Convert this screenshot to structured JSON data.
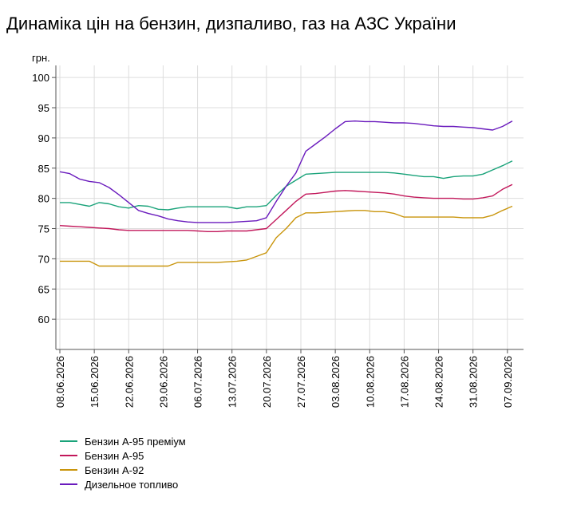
{
  "chart_data": {
    "type": "line",
    "title": "Динаміка цін на бензин, дизпаливо, газ на АЗС України",
    "ylabel": "грн.",
    "xlabel": "",
    "ylim": [
      55,
      102
    ],
    "yticks": [
      60,
      65,
      70,
      75,
      80,
      85,
      90,
      95,
      100
    ],
    "grid": true,
    "legend_position": "bottom-left",
    "x_ticks": [
      "08.06.2026",
      "15.06.2026",
      "22.06.2026",
      "29.06.2026",
      "06.07.2026",
      "13.07.2026",
      "20.07.2026",
      "27.07.2026",
      "03.08.2026",
      "10.08.2026",
      "17.08.2026",
      "24.08.2026",
      "31.08.2026",
      "07.09.2026"
    ],
    "x": [
      "08.06.2026",
      "10.06.2026",
      "12.06.2026",
      "14.06.2026",
      "16.06.2026",
      "18.06.2026",
      "20.06.2026",
      "22.06.2026",
      "24.06.2026",
      "26.06.2026",
      "28.06.2026",
      "30.06.2026",
      "02.07.2026",
      "04.07.2026",
      "06.07.2026",
      "08.07.2026",
      "10.07.2026",
      "12.07.2026",
      "14.07.2026",
      "16.07.2026",
      "18.07.2026",
      "20.07.2026",
      "22.07.2026",
      "24.07.2026",
      "26.07.2026",
      "28.07.2026",
      "30.07.2026",
      "01.08.2026",
      "03.08.2026",
      "05.08.2026",
      "07.08.2026",
      "09.08.2026",
      "11.08.2026",
      "13.08.2026",
      "15.08.2026",
      "17.08.2026",
      "19.08.2026",
      "21.08.2026",
      "23.08.2026",
      "25.08.2026",
      "27.08.2026",
      "29.08.2026",
      "31.08.2026",
      "02.09.2026",
      "04.09.2026",
      "06.09.2026",
      "08.09.2026"
    ],
    "series": [
      {
        "name": "Бензин А-95 преміум",
        "color": "#1aa37a",
        "values": [
          79.3,
          79.3,
          79.0,
          78.7,
          79.3,
          79.1,
          78.6,
          78.4,
          78.8,
          78.7,
          78.2,
          78.1,
          78.4,
          78.6,
          78.6,
          78.6,
          78.6,
          78.6,
          78.3,
          78.6,
          78.6,
          78.8,
          80.5,
          82.0,
          83.0,
          84.0,
          84.1,
          84.2,
          84.3,
          84.3,
          84.3,
          84.3,
          84.3,
          84.3,
          84.2,
          84.0,
          83.8,
          83.6,
          83.6,
          83.3,
          83.6,
          83.7,
          83.7,
          84.0,
          84.7,
          85.4,
          86.2
        ]
      },
      {
        "name": "Бензин А-95",
        "color": "#c2185b",
        "values": [
          75.5,
          75.4,
          75.3,
          75.2,
          75.1,
          75.0,
          74.8,
          74.7,
          74.7,
          74.7,
          74.7,
          74.7,
          74.7,
          74.7,
          74.6,
          74.5,
          74.5,
          74.6,
          74.6,
          74.6,
          74.8,
          75.0,
          76.5,
          78.0,
          79.5,
          80.7,
          80.8,
          81.0,
          81.2,
          81.3,
          81.2,
          81.1,
          81.0,
          80.9,
          80.7,
          80.4,
          80.2,
          80.1,
          80.0,
          80.0,
          80.0,
          79.9,
          79.9,
          80.1,
          80.4,
          81.5,
          82.3
        ]
      },
      {
        "name": "Бензин А-92",
        "color": "#c9950c",
        "values": [
          69.6,
          69.6,
          69.6,
          69.6,
          68.8,
          68.8,
          68.8,
          68.8,
          68.8,
          68.8,
          68.8,
          68.8,
          69.4,
          69.4,
          69.4,
          69.4,
          69.4,
          69.5,
          69.6,
          69.8,
          70.4,
          71.0,
          73.5,
          75.0,
          76.8,
          77.6,
          77.6,
          77.7,
          77.8,
          77.9,
          78.0,
          78.0,
          77.8,
          77.8,
          77.5,
          76.9,
          76.9,
          76.9,
          76.9,
          76.9,
          76.9,
          76.8,
          76.8,
          76.8,
          77.2,
          78.0,
          78.7
        ]
      },
      {
        "name": "Дизельное топливо",
        "color": "#6a1bbd",
        "values": [
          84.4,
          84.1,
          83.2,
          82.8,
          82.6,
          81.8,
          80.6,
          79.3,
          78.0,
          77.5,
          77.1,
          76.6,
          76.3,
          76.1,
          76.0,
          76.0,
          76.0,
          76.0,
          76.1,
          76.2,
          76.3,
          76.8,
          79.5,
          82.0,
          84.2,
          87.8,
          89.0,
          90.2,
          91.5,
          92.7,
          92.8,
          92.7,
          92.7,
          92.6,
          92.5,
          92.5,
          92.4,
          92.2,
          92.0,
          91.9,
          91.9,
          91.8,
          91.7,
          91.5,
          91.3,
          91.9,
          92.8
        ]
      }
    ]
  }
}
